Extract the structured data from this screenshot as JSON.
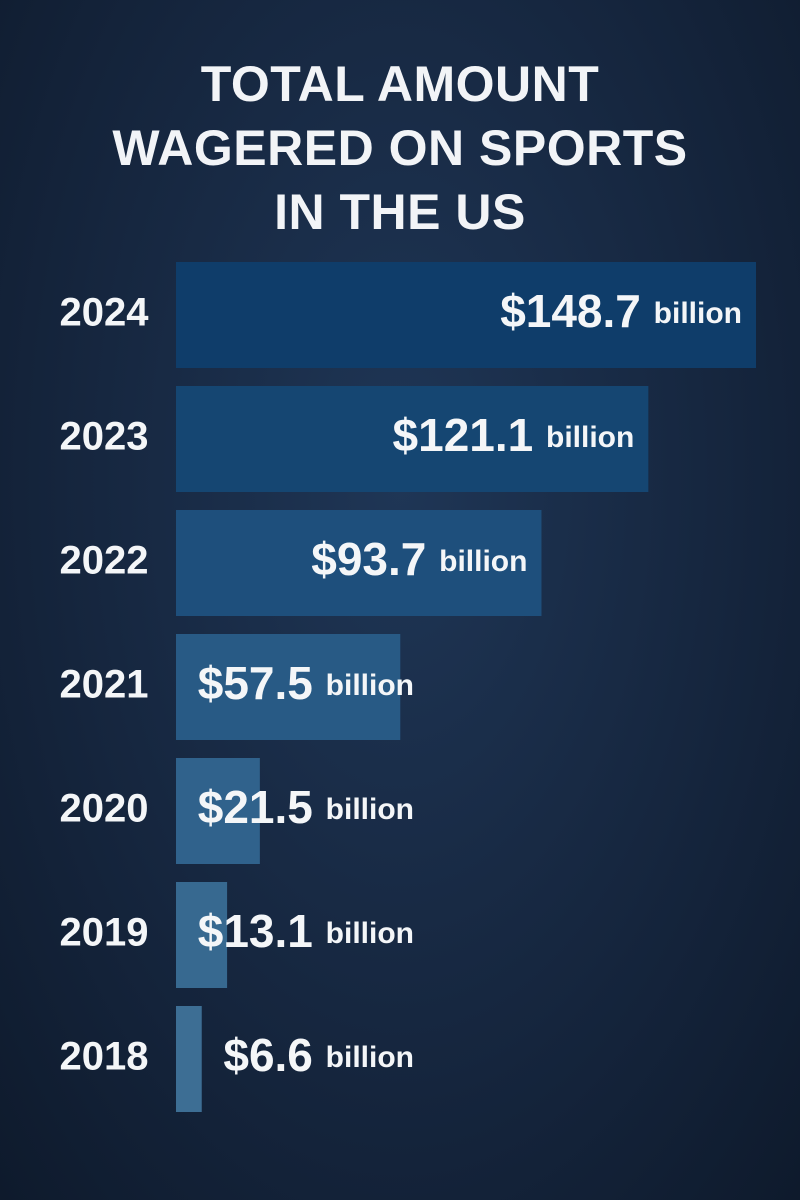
{
  "chart_data": {
    "type": "hbar",
    "title": "TOTAL AMOUNT WAGERED ON SPORTS IN THE US",
    "categories": [
      "2024",
      "2023",
      "2022",
      "2021",
      "2020",
      "2019",
      "2018"
    ],
    "values": [
      148.7,
      121.1,
      93.7,
      57.5,
      21.5,
      13.1,
      6.6
    ],
    "value_labels": [
      "$148.7 billion",
      "$121.1 billion",
      "$93.7 billion",
      "$57.5 billion",
      "$21.5 billion",
      "$13.1 billion",
      "$6.6 billion"
    ],
    "colors": [
      "#0f3d6a",
      "#154672",
      "#1e4f7c",
      "#285a85",
      "#30628c",
      "#376990",
      "#3d6e94"
    ]
  }
}
